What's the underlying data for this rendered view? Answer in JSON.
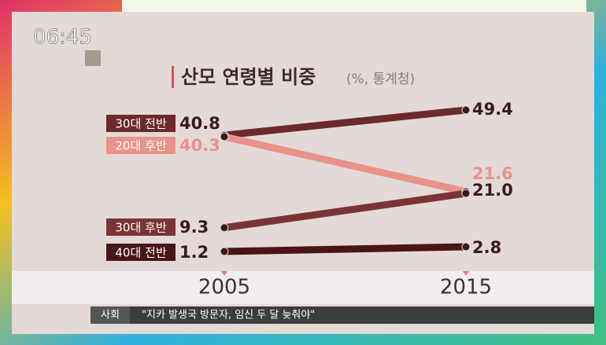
{
  "clock": "06:45",
  "ticker": {
    "section": "사회",
    "headline": "\"지카 발생국 방문자, 임신 두 달 늦춰야\""
  },
  "chart_data": {
    "type": "line",
    "title": "산모 연령별 비중",
    "subtitle": "(%, 통계청)",
    "x": [
      "2005",
      "2015"
    ],
    "series": [
      {
        "name": "30대 전반",
        "color": "#6b2a2c",
        "values": [
          40.8,
          49.4
        ]
      },
      {
        "name": "20대 후반",
        "color": "#e8928a",
        "values": [
          40.3,
          21.6
        ]
      },
      {
        "name": "30대 후반",
        "color": "#7a3436",
        "values": [
          9.3,
          21
        ],
        "value_labels": [
          "9.3",
          "21.0"
        ]
      },
      {
        "name": "40대 전반",
        "color": "#4a1518",
        "values": [
          1.2,
          2.8
        ]
      }
    ]
  }
}
